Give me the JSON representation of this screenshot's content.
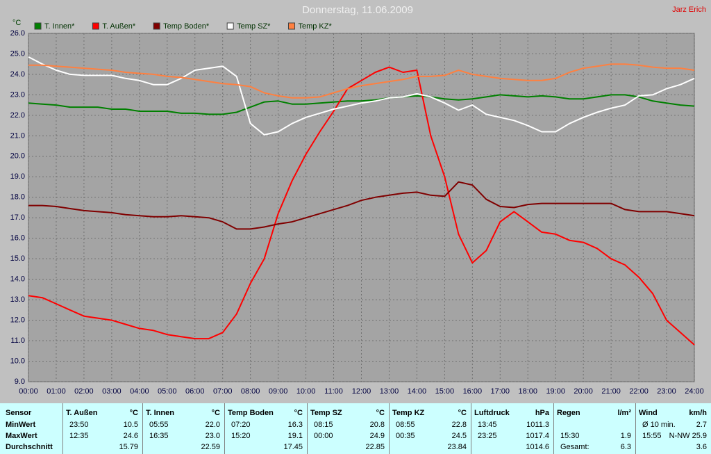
{
  "chart_data": {
    "type": "line",
    "title": "Donnerstag, 11.06.2009",
    "author": "Jarz Erich",
    "y_label": "°C",
    "grid": true,
    "xlim": [
      0,
      24
    ],
    "ylim": [
      9,
      26
    ],
    "xticks": [
      {
        "value": 0,
        "label": "00:00"
      },
      {
        "value": 1,
        "label": "01:00"
      },
      {
        "value": 2,
        "label": "02:00"
      },
      {
        "value": 3,
        "label": "03:00"
      },
      {
        "value": 4,
        "label": "04:00"
      },
      {
        "value": 5,
        "label": "05:00"
      },
      {
        "value": 6,
        "label": "06:00"
      },
      {
        "value": 7,
        "label": "07:00"
      },
      {
        "value": 8,
        "label": "08:00"
      },
      {
        "value": 9,
        "label": "09:00"
      },
      {
        "value": 10,
        "label": "10:00"
      },
      {
        "value": 11,
        "label": "11:00"
      },
      {
        "value": 12,
        "label": "12:00"
      },
      {
        "value": 13,
        "label": "13:00"
      },
      {
        "value": 14,
        "label": "14:00"
      },
      {
        "value": 15,
        "label": "15:00"
      },
      {
        "value": 16,
        "label": "16:00"
      },
      {
        "value": 17,
        "label": "17:00"
      },
      {
        "value": 18,
        "label": "18:00"
      },
      {
        "value": 19,
        "label": "19:00"
      },
      {
        "value": 20,
        "label": "20:00"
      },
      {
        "value": 21,
        "label": "21:00"
      },
      {
        "value": 22,
        "label": "22:00"
      },
      {
        "value": 23,
        "label": "23:00"
      },
      {
        "value": 24,
        "label": "24:00"
      }
    ],
    "yticks": [
      {
        "value": 9,
        "label": "9.0"
      },
      {
        "value": 10,
        "label": "10.0"
      },
      {
        "value": 11,
        "label": "11.0"
      },
      {
        "value": 12,
        "label": "12.0"
      },
      {
        "value": 13,
        "label": "13.0"
      },
      {
        "value": 14,
        "label": "14.0"
      },
      {
        "value": 15,
        "label": "15.0"
      },
      {
        "value": 16,
        "label": "16.0"
      },
      {
        "value": 17,
        "label": "17.0"
      },
      {
        "value": 18,
        "label": "18.0"
      },
      {
        "value": 19,
        "label": "19.0"
      },
      {
        "value": 20,
        "label": "20.0"
      },
      {
        "value": 21,
        "label": "21.0"
      },
      {
        "value": 22,
        "label": "22.0"
      },
      {
        "value": 23,
        "label": "23.0"
      },
      {
        "value": 24,
        "label": "24.0"
      },
      {
        "value": 25,
        "label": "25.0"
      },
      {
        "value": 26,
        "label": "26.0"
      }
    ],
    "x": [
      0,
      0.5,
      1,
      1.5,
      2,
      2.5,
      3,
      3.5,
      4,
      4.5,
      5,
      5.5,
      6,
      6.5,
      7,
      7.5,
      8,
      8.5,
      9,
      9.5,
      10,
      10.5,
      11,
      11.5,
      12,
      12.5,
      13,
      13.5,
      14,
      14.5,
      15,
      15.5,
      16,
      16.5,
      17,
      17.5,
      18,
      18.5,
      19,
      19.5,
      20,
      20.5,
      21,
      21.5,
      22,
      22.5,
      23,
      23.5,
      24
    ],
    "series": [
      {
        "name": "T. Innen*",
        "color": "#008000",
        "values": [
          22.6,
          22.55,
          22.5,
          22.4,
          22.4,
          22.4,
          22.3,
          22.3,
          22.2,
          22.2,
          22.2,
          22.1,
          22.1,
          22.05,
          22.05,
          22.15,
          22.4,
          22.65,
          22.7,
          22.55,
          22.55,
          22.6,
          22.65,
          22.7,
          22.7,
          22.75,
          22.85,
          22.9,
          22.95,
          22.9,
          22.8,
          22.75,
          22.8,
          22.9,
          23.0,
          22.95,
          22.9,
          22.95,
          22.9,
          22.8,
          22.8,
          22.9,
          23.0,
          23.0,
          22.9,
          22.7,
          22.6,
          22.5,
          22.45
        ]
      },
      {
        "name": "T. Außen*",
        "color": "#ff0000",
        "values": [
          13.2,
          13.1,
          12.8,
          12.5,
          12.2,
          12.1,
          12.0,
          11.8,
          11.6,
          11.5,
          11.3,
          11.2,
          11.1,
          11.1,
          11.4,
          12.3,
          13.8,
          15.0,
          17.2,
          18.8,
          20.1,
          21.2,
          22.2,
          23.3,
          23.7,
          24.1,
          24.35,
          24.1,
          24.2,
          21.0,
          19.0,
          16.2,
          14.8,
          15.4,
          16.8,
          17.3,
          16.8,
          16.3,
          16.2,
          15.9,
          15.8,
          15.5,
          15.0,
          14.7,
          14.1,
          13.3,
          12.0,
          11.4,
          10.8
        ]
      },
      {
        "name": "Temp Boden*",
        "color": "#800000",
        "values": [
          17.6,
          17.6,
          17.55,
          17.45,
          17.35,
          17.3,
          17.25,
          17.15,
          17.1,
          17.05,
          17.05,
          17.1,
          17.05,
          17.0,
          16.8,
          16.45,
          16.45,
          16.55,
          16.7,
          16.8,
          17.0,
          17.2,
          17.4,
          17.6,
          17.85,
          18.0,
          18.1,
          18.2,
          18.25,
          18.1,
          18.05,
          18.75,
          18.6,
          17.9,
          17.55,
          17.5,
          17.65,
          17.7,
          17.7,
          17.7,
          17.7,
          17.7,
          17.7,
          17.4,
          17.3,
          17.3,
          17.3,
          17.2,
          17.1
        ]
      },
      {
        "name": "Temp SZ*",
        "color": "#ffffff",
        "values": [
          24.85,
          24.5,
          24.2,
          24.0,
          23.95,
          23.95,
          23.95,
          23.8,
          23.7,
          23.5,
          23.5,
          23.8,
          24.2,
          24.3,
          24.4,
          23.9,
          21.6,
          21.05,
          21.2,
          21.6,
          21.9,
          22.1,
          22.3,
          22.45,
          22.6,
          22.7,
          22.85,
          22.9,
          23.05,
          22.9,
          22.6,
          22.25,
          22.5,
          22.05,
          21.9,
          21.75,
          21.5,
          21.2,
          21.2,
          21.6,
          21.9,
          22.15,
          22.35,
          22.5,
          22.95,
          23.0,
          23.3,
          23.5,
          23.8
        ]
      },
      {
        "name": "Temp KZ*",
        "color": "#ff8040",
        "values": [
          24.45,
          24.45,
          24.4,
          24.35,
          24.3,
          24.25,
          24.2,
          24.1,
          24.05,
          24.0,
          23.9,
          23.85,
          23.75,
          23.65,
          23.55,
          23.5,
          23.4,
          23.1,
          22.95,
          22.85,
          22.85,
          22.9,
          23.1,
          23.3,
          23.45,
          23.55,
          23.65,
          23.75,
          23.9,
          23.9,
          23.95,
          24.2,
          24.0,
          23.9,
          23.8,
          23.75,
          23.7,
          23.7,
          23.8,
          24.1,
          24.3,
          24.4,
          24.5,
          24.5,
          24.45,
          24.35,
          24.3,
          24.3,
          24.2
        ]
      }
    ]
  },
  "table": {
    "corner": "Sensor",
    "row_labels": [
      "MinWert",
      "MaxWert",
      "Durchschnitt"
    ],
    "groups": [
      {
        "name": "T. Außen",
        "unit": "°C",
        "rows": [
          [
            "23:50",
            "10.5"
          ],
          [
            "12:35",
            "24.6"
          ],
          [
            "15.79"
          ]
        ]
      },
      {
        "name": "T. Innen",
        "unit": "°C",
        "rows": [
          [
            "05:55",
            "22.0"
          ],
          [
            "16:35",
            "23.0"
          ],
          [
            "22.59"
          ]
        ]
      },
      {
        "name": "Temp Boden",
        "unit": "°C",
        "rows": [
          [
            "07:20",
            "16.3"
          ],
          [
            "15:20",
            "19.1"
          ],
          [
            "17.45"
          ]
        ]
      },
      {
        "name": "Temp SZ",
        "unit": "°C",
        "rows": [
          [
            "08:15",
            "20.8"
          ],
          [
            "00:00",
            "24.9"
          ],
          [
            "22.85"
          ]
        ]
      },
      {
        "name": "Temp KZ",
        "unit": "°C",
        "rows": [
          [
            "08:55",
            "22.8"
          ],
          [
            "00:35",
            "24.5"
          ],
          [
            "23.84"
          ]
        ]
      },
      {
        "name": "Luftdruck",
        "unit": "hPa",
        "rows": [
          [
            "13:45",
            "1011.3"
          ],
          [
            "23:25",
            "1017.4"
          ],
          [
            "1014.6"
          ]
        ]
      },
      {
        "name": "Regen",
        "unit": "l/m²",
        "rows": [
          [],
          [
            "15:30",
            "1.9"
          ],
          [
            "Gesamt:",
            "6.3"
          ]
        ]
      },
      {
        "name": "Wind",
        "unit": "km/h",
        "rows": [
          [
            "Ø 10 min.",
            "2.7"
          ],
          [
            "15:55",
            "N-NW 25.9"
          ],
          [
            "3.6"
          ]
        ]
      }
    ]
  }
}
